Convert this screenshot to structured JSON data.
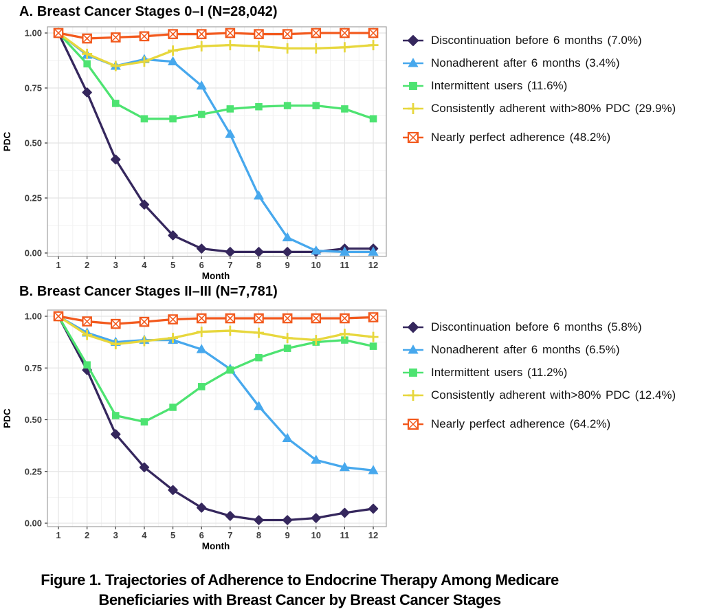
{
  "caption": {
    "line1": "Figure 1. Trajectories of Adherence to Endocrine Therapy Among Medicare",
    "line2": "Beneficiaries with Breast Cancer by Breast Cancer Stages"
  },
  "chart_data": [
    {
      "id": "panel-a",
      "type": "line",
      "title": "A. Breast Cancer Stages 0–I (N=28,042)",
      "xlabel": "Month",
      "ylabel": "PDC",
      "x": [
        1,
        2,
        3,
        4,
        5,
        6,
        7,
        8,
        9,
        10,
        11,
        12
      ],
      "ylim": [
        0,
        1
      ],
      "yticks": [
        0,
        0.25,
        0.5,
        0.75,
        1
      ],
      "grid": true,
      "legend_position": "right",
      "series": [
        {
          "name": "Discontinuation before 6 months (7.0%)",
          "shape": "diamond",
          "color": "#35275d",
          "values": [
            1.0,
            0.73,
            0.425,
            0.22,
            0.08,
            0.02,
            0.005,
            0.005,
            0.005,
            0.005,
            0.02,
            0.02
          ]
        },
        {
          "name": "Nonadherent after 6 months (3.4%)",
          "shape": "triangle",
          "color": "#47a8ed",
          "values": [
            1.0,
            0.9,
            0.85,
            0.88,
            0.87,
            0.76,
            0.54,
            0.26,
            0.07,
            0.01,
            0.005,
            0.005
          ]
        },
        {
          "name": "Intermittent users (11.6%)",
          "shape": "square",
          "color": "#4de371",
          "values": [
            1.0,
            0.86,
            0.68,
            0.61,
            0.61,
            0.63,
            0.655,
            0.665,
            0.67,
            0.67,
            0.655,
            0.61
          ]
        },
        {
          "name": "Consistently adherent with>80% PDC (29.9%)",
          "shape": "plus",
          "color": "#e7d73d",
          "values": [
            1.0,
            0.905,
            0.85,
            0.87,
            0.92,
            0.94,
            0.945,
            0.94,
            0.93,
            0.93,
            0.935,
            0.945
          ]
        },
        {
          "name": "Nearly perfect adherence (48.2%)",
          "shape": "crossbox",
          "color": "#f2591d",
          "values": [
            1.0,
            0.975,
            0.98,
            0.985,
            0.995,
            0.995,
            1.0,
            0.995,
            0.995,
            1.0,
            1.0,
            1.0
          ]
        }
      ]
    },
    {
      "id": "panel-b",
      "type": "line",
      "title": "B. Breast Cancer Stages II–III (N=7,781)",
      "xlabel": "Month",
      "ylabel": "PDC",
      "x": [
        1,
        2,
        3,
        4,
        5,
        6,
        7,
        8,
        9,
        10,
        11,
        12
      ],
      "ylim": [
        0,
        1
      ],
      "yticks": [
        0,
        0.25,
        0.5,
        0.75,
        1
      ],
      "grid": true,
      "legend_position": "right",
      "series": [
        {
          "name": "Discontinuation before 6 months (5.8%)",
          "shape": "diamond",
          "color": "#35275d",
          "values": [
            1.0,
            0.74,
            0.43,
            0.27,
            0.16,
            0.075,
            0.035,
            0.015,
            0.015,
            0.025,
            0.05,
            0.07
          ]
        },
        {
          "name": "Nonadherent after 6 months (6.5%)",
          "shape": "triangle",
          "color": "#47a8ed",
          "values": [
            1.0,
            0.92,
            0.875,
            0.885,
            0.885,
            0.84,
            0.745,
            0.565,
            0.41,
            0.305,
            0.27,
            0.255
          ]
        },
        {
          "name": "Intermittent users (11.2%)",
          "shape": "square",
          "color": "#4de371",
          "values": [
            1.0,
            0.765,
            0.52,
            0.49,
            0.56,
            0.66,
            0.74,
            0.8,
            0.845,
            0.875,
            0.885,
            0.855
          ]
        },
        {
          "name": "Consistently adherent with>80% PDC (12.4%)",
          "shape": "plus",
          "color": "#e7d73d",
          "values": [
            1.0,
            0.91,
            0.865,
            0.88,
            0.895,
            0.925,
            0.93,
            0.92,
            0.895,
            0.885,
            0.915,
            0.9
          ]
        },
        {
          "name": "Nearly perfect adherence (64.2%)",
          "shape": "crossbox",
          "color": "#f2591d",
          "values": [
            1.0,
            0.975,
            0.963,
            0.973,
            0.985,
            0.99,
            0.99,
            0.99,
            0.99,
            0.99,
            0.99,
            0.995
          ]
        }
      ]
    }
  ]
}
